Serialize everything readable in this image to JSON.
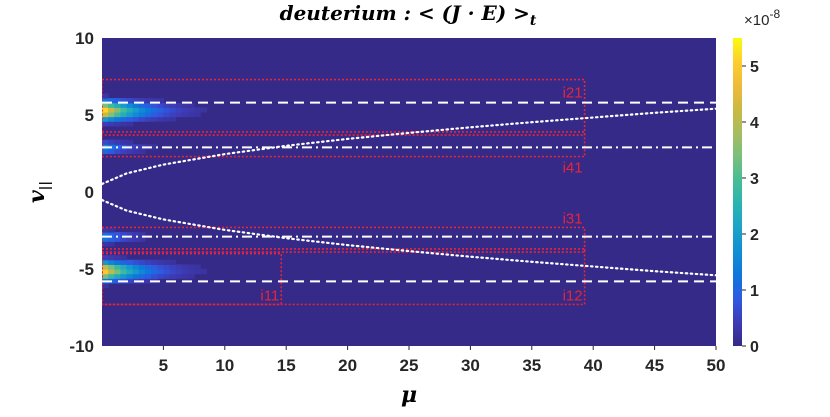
{
  "chart_data": {
    "type": "heatmap",
    "title": "deuterium : < (J · E) >_t",
    "title_main": "deuterium : < (J · E) >",
    "title_sub": "t",
    "xlabel": "μ",
    "ylabel_main": "v",
    "ylabel_sub": "||",
    "xlim": [
      0,
      50
    ],
    "ylim": [
      -10,
      10
    ],
    "x_ticks": [
      5,
      10,
      15,
      20,
      25,
      30,
      35,
      40,
      45,
      50
    ],
    "y_ticks": [
      10,
      5,
      0,
      -5,
      -10
    ],
    "y_tick_labels": [
      "10",
      "5",
      "0",
      "-5",
      "-10"
    ],
    "colorbar": {
      "range": [
        0,
        5.5
      ],
      "ticks": [
        0,
        1,
        2,
        3,
        4,
        5
      ],
      "multiplier": "×10",
      "exponent": "-8"
    },
    "colormap": [
      "#352a87",
      "#3e3bb5",
      "#2e5ae3",
      "#0f77db",
      "#108fd2",
      "#1ca3c8",
      "#2ab4b1",
      "#47bd96",
      "#7abf7c",
      "#a7bd5f",
      "#cbb942",
      "#f0ba39",
      "#fcce2e",
      "#f9fb0e"
    ],
    "hotspots": [
      {
        "x": 0.2,
        "y": 5.3,
        "peak": 5.3,
        "sx": 2.6,
        "sy": 0.55
      },
      {
        "x": 0.2,
        "y": -5.1,
        "peak": 5.1,
        "sx": 2.6,
        "sy": 0.55
      },
      {
        "x": 0.4,
        "y": 2.9,
        "peak": 1.6,
        "sx": 2.0,
        "sy": 0.35
      },
      {
        "x": 0.4,
        "y": -2.9,
        "peak": 1.4,
        "sx": 2.0,
        "sy": 0.35
      }
    ],
    "lines": [
      {
        "name": "dashed-upper",
        "style": "dashed",
        "y": 5.8
      },
      {
        "name": "dashed-lower",
        "style": "dashed",
        "y": -5.8
      },
      {
        "name": "dashdot-upper",
        "style": "dashdot",
        "y": 2.9
      },
      {
        "name": "dashdot-lower",
        "style": "dashdot",
        "y": -2.9
      }
    ],
    "trapped_passing_boundary": {
      "style": "dotted",
      "curve": "v = ±sqrt(0.27 + 0.58·μ)",
      "x": [
        0,
        2,
        5,
        10,
        15,
        20,
        25,
        30,
        35,
        40,
        45,
        50
      ],
      "y_upper": [
        0.52,
        1.21,
        1.78,
        2.46,
        3.0,
        3.45,
        3.84,
        4.2,
        4.53,
        4.84,
        5.14,
        5.41
      ]
    },
    "regions": [
      {
        "label": "i21",
        "x": [
          0,
          39.3
        ],
        "y": [
          3.7,
          7.3
        ],
        "label_pos": "inside-top-right"
      },
      {
        "label": "i41",
        "x": [
          0,
          39.3
        ],
        "y": [
          2.3,
          3.9
        ],
        "label_pos": "below-right"
      },
      {
        "label": "i31",
        "x": [
          0,
          39.3
        ],
        "y": [
          -3.9,
          -2.3
        ],
        "label_pos": "above-right"
      },
      {
        "label": "i12",
        "x": [
          0,
          39.3
        ],
        "y": [
          -7.3,
          -3.7
        ],
        "label_pos": "inside-bottom-right"
      },
      {
        "label": "i11",
        "x": [
          0,
          14.6
        ],
        "y": [
          -7.3,
          -4.0
        ],
        "label_pos": "inside-bottom-right"
      }
    ],
    "grid": false,
    "legend": "none",
    "colors": {
      "background": "#352a87",
      "region_box": "#e8243a",
      "guide_lines": "#ffffff"
    }
  }
}
